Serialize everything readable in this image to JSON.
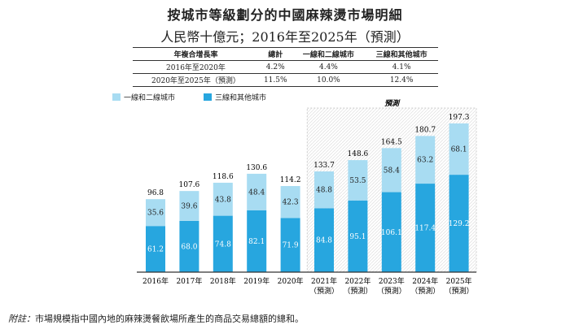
{
  "title": "按城市等級劃分的中國麻辣燙市場明細",
  "subtitle": "人民幣十億元；2016年至2025年（預測）",
  "cagr_table": {
    "headers": [
      "年複合增長率",
      "總計",
      "一線和二線城市",
      "三線和其他城市"
    ],
    "rows": [
      [
        "2016年至2020年",
        "4.2%",
        "4.4%",
        "4.1%"
      ],
      [
        "2020年至2025年（預測）",
        "11.5%",
        "10.0%",
        "12.4%"
      ]
    ]
  },
  "legend": [
    "一線和二線城市",
    "三線和其他城市"
  ],
  "forecast_label": "預測",
  "note_label": "附註：",
  "note": "市場規模指中國內地的麻辣燙餐飲場所產生的商品交易總額的總和。",
  "chart_data": {
    "type": "bar",
    "stacked": true,
    "categories": [
      "2016年",
      "2017年",
      "2018年",
      "2019年",
      "2020年",
      "2021年",
      "2022年",
      "2023年",
      "2024年",
      "2025年"
    ],
    "category_sublabels": [
      "",
      "",
      "",
      "",
      "",
      "（預測）",
      "（預測）",
      "（預測）",
      "（預測）",
      "（預測）"
    ],
    "series": [
      {
        "name": "三線和其他城市",
        "color": "#27a6df",
        "values": [
          61.2,
          68.0,
          74.8,
          82.1,
          71.9,
          84.8,
          95.1,
          106.1,
          117.4,
          129.2
        ]
      },
      {
        "name": "一線和二線城市",
        "color": "#a8dcf2",
        "values": [
          35.6,
          39.6,
          43.8,
          48.4,
          42.3,
          48.8,
          53.5,
          58.4,
          63.2,
          68.1
        ]
      }
    ],
    "totals": [
      96.8,
      107.6,
      118.6,
      130.6,
      114.2,
      133.7,
      148.6,
      164.5,
      180.7,
      197.3
    ],
    "forecast_from": "2021年",
    "ylim": [
      0,
      200
    ]
  }
}
